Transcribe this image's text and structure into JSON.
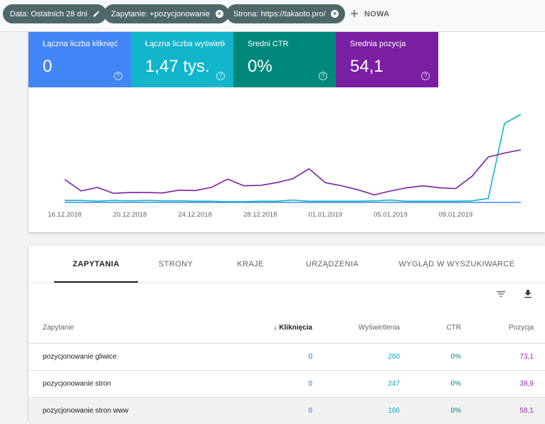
{
  "filters": {
    "chips": [
      {
        "label": "Data: Ostatnich 28 dni",
        "icon": "pencil-icon"
      },
      {
        "label": "Zapytanie: +pozycjonowanie",
        "icon": "close-icon"
      },
      {
        "label": "Strona: https://takaoto.pro/",
        "icon": "close-icon"
      }
    ],
    "new_label": "NOWA"
  },
  "metrics": [
    {
      "label": "Łączna liczba kliknięć",
      "value": "0",
      "color": "#4285f4"
    },
    {
      "label": "Łączna liczba wyświetleń",
      "value": "1,47 tys.",
      "color": "#12b5cb"
    },
    {
      "label": "Średni CTR",
      "value": "0%",
      "color": "#00897b"
    },
    {
      "label": "Średnia pozycja",
      "value": "54,1",
      "color": "#7b1fa2"
    }
  ],
  "chart_data": {
    "type": "line",
    "x_tick_labels": [
      "16.12.2018",
      "20.12.2018",
      "24.12.2018",
      "28.12.2018",
      "01.01.2019",
      "05.01.2019",
      "09.01.2019"
    ],
    "x_count": 29,
    "y_axis_visible": false,
    "series": [
      {
        "color": "#4285f4",
        "values": [
          0,
          0,
          0,
          0,
          0,
          0,
          0,
          0,
          0,
          0,
          0,
          0,
          0,
          0,
          0,
          0,
          0,
          0,
          0,
          0,
          0,
          0,
          0,
          0,
          0,
          0,
          0,
          0,
          0
        ]
      },
      {
        "color": "#12b5cb",
        "values": [
          5,
          5,
          3,
          5,
          4,
          5,
          4,
          4,
          3,
          3,
          2,
          2,
          3,
          3,
          6,
          3,
          3,
          3,
          3,
          4,
          6,
          3,
          3,
          3,
          3,
          4,
          10,
          200,
          223
        ]
      },
      {
        "color": "#7b1fa2",
        "values": [
          58,
          29,
          38,
          23,
          25,
          25,
          24,
          31,
          30,
          38,
          59,
          42,
          43,
          50,
          60,
          85,
          50,
          42,
          32,
          19,
          29,
          37,
          42,
          37,
          35,
          66,
          115,
          125,
          133
        ]
      }
    ]
  },
  "tabs": [
    "ZAPYTANIA",
    "STRONY",
    "KRAJE",
    "URZĄDZENIA",
    "WYGLĄD W WYSZUKIWARCE"
  ],
  "toolbar": {
    "filter_icon": "filter-icon",
    "download_icon": "download-icon"
  },
  "table": {
    "headers": {
      "query": "Zapytanie",
      "clicks": "Kliknięcia",
      "impressions": "Wyświetlenia",
      "ctr": "CTR",
      "position": "Pozycja"
    },
    "rows": [
      {
        "query": "pozycjonowanie gliwice",
        "clicks": "0",
        "impressions": "260",
        "ctr": "0%",
        "position": "73,1"
      },
      {
        "query": "pozycjonowanie stron",
        "clicks": "0",
        "impressions": "247",
        "ctr": "0%",
        "position": "38,9"
      },
      {
        "query": "pozycjonowanie stron www",
        "clicks": "0",
        "impressions": "166",
        "ctr": "0%",
        "position": "58,1"
      }
    ],
    "colors": {
      "clicks": "#1a73e8",
      "impressions": "#12a4c0",
      "ctr": "#00897b",
      "position": "#9c27b0"
    }
  }
}
